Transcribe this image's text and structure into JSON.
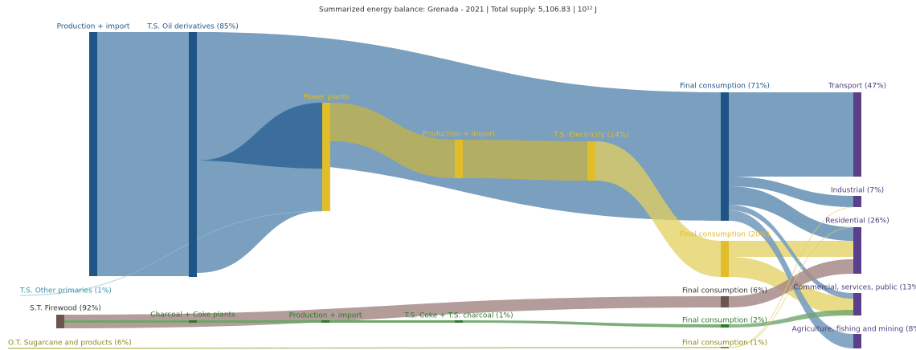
{
  "title": "Summarized energy balance: Grenada - 2021 | Total supply: 5,106.83 | 10¹² J",
  "nodes": [
    {
      "label": "Production + import"
    },
    {
      "label": "T.S. Oil derivatives (85%)"
    },
    {
      "label": "Power plants"
    },
    {
      "label": "Production + import"
    },
    {
      "label": "T.S. Electricity (14%)"
    },
    {
      "label": "Final consumption (71%)"
    },
    {
      "label": "Final consumption (20%)"
    },
    {
      "label": "Final consumption (6%)"
    },
    {
      "label": "Final consumption (2%)"
    },
    {
      "label": "Final consumption (1%)"
    },
    {
      "label": "Transport (47%)"
    },
    {
      "label": "Industrial (7%)"
    },
    {
      "label": "Residential (26%)"
    },
    {
      "label": "Commercial, services, public (13%)"
    },
    {
      "label": "Agriculture, fishing and mining (8%)"
    },
    {
      "label": "T.S. Other primaries (1%)"
    },
    {
      "label": "S.T. Firewood (92%)"
    },
    {
      "label": "Charcoal + Coke plants"
    },
    {
      "label": "Production + import"
    },
    {
      "label": "T.S. Coke + T.S. charcoal (1%)"
    },
    {
      "label": "O.T. Sugarcane and products (6%)"
    }
  ]
}
